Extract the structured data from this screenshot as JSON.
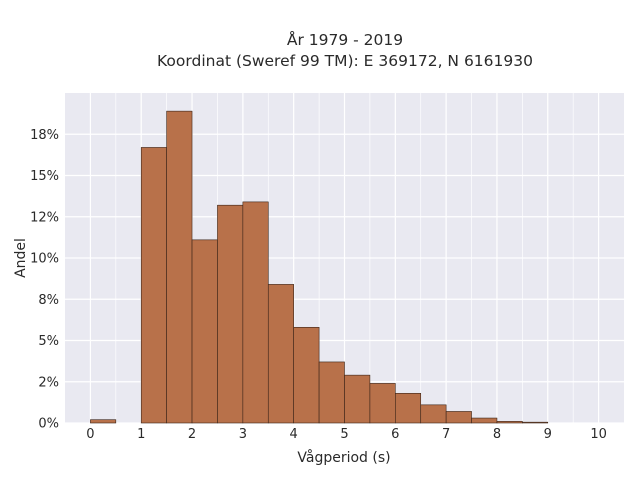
{
  "chart_data": {
    "type": "bar",
    "title_line1": "År 1979 - 2019",
    "title_line2": "Koordinat (Sweref 99 TM): E 369172, N 6161930",
    "xlabel": "Vågperiod (s)",
    "ylabel": "Andel",
    "bin_width": 0.5,
    "bins": [
      {
        "start": 0.0,
        "value": 0.2
      },
      {
        "start": 0.5,
        "value": 0.0
      },
      {
        "start": 1.0,
        "value": 16.7
      },
      {
        "start": 1.5,
        "value": 18.9
      },
      {
        "start": 2.0,
        "value": 11.1
      },
      {
        "start": 2.5,
        "value": 13.2
      },
      {
        "start": 3.0,
        "value": 13.4
      },
      {
        "start": 3.5,
        "value": 8.4
      },
      {
        "start": 4.0,
        "value": 5.8
      },
      {
        "start": 4.5,
        "value": 3.7
      },
      {
        "start": 5.0,
        "value": 2.9
      },
      {
        "start": 5.5,
        "value": 2.4
      },
      {
        "start": 6.0,
        "value": 1.8
      },
      {
        "start": 6.5,
        "value": 1.1
      },
      {
        "start": 7.0,
        "value": 0.7
      },
      {
        "start": 7.5,
        "value": 0.3
      },
      {
        "start": 8.0,
        "value": 0.1
      },
      {
        "start": 8.5,
        "value": 0.05
      },
      {
        "start": 9.0,
        "value": 0.0
      },
      {
        "start": 9.5,
        "value": 0.0
      }
    ],
    "xlim": [
      -0.5,
      10.5
    ],
    "ylim": [
      0,
      20
    ],
    "x_ticks": [
      "0",
      "1",
      "2",
      "3",
      "4",
      "5",
      "6",
      "7",
      "8",
      "9",
      "10"
    ],
    "y_ticks": [
      {
        "value": 0,
        "label": "0%"
      },
      {
        "value": 2.5,
        "label": "2%"
      },
      {
        "value": 5,
        "label": "5%"
      },
      {
        "value": 7.5,
        "label": "8%"
      },
      {
        "value": 10,
        "label": "10%"
      },
      {
        "value": 12.5,
        "label": "12%"
      },
      {
        "value": 15,
        "label": "15%"
      },
      {
        "value": 17.5,
        "label": "18%"
      }
    ],
    "grid": true,
    "colors": {
      "bar": "#b8714a",
      "bar_edge": "#3a2418",
      "plot_bg": "#e9e9f1",
      "grid": "#ffffff"
    }
  }
}
